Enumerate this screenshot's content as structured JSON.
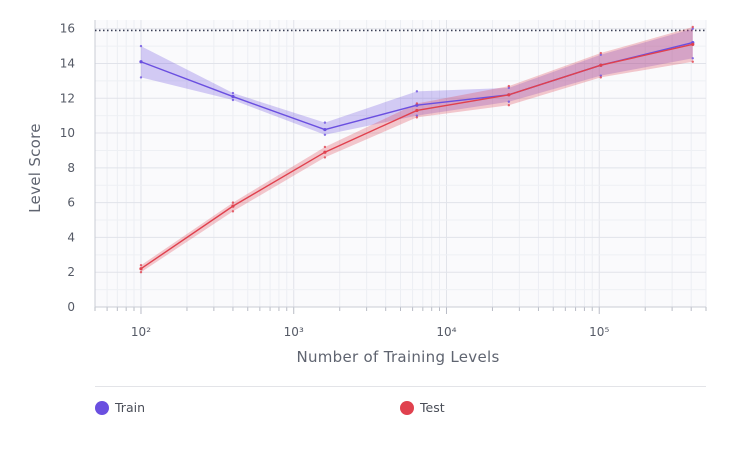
{
  "chart_data": {
    "type": "line",
    "xlabel": "Number of Training Levels",
    "ylabel": "Level Score",
    "x_scale": "log",
    "xlim": [
      50,
      500000
    ],
    "ylim": [
      0,
      16.5
    ],
    "x_ticks": [
      {
        "value": 100,
        "label": "10²"
      },
      {
        "value": 1000,
        "label": "10³"
      },
      {
        "value": 10000,
        "label": "10⁴"
      },
      {
        "value": 100000,
        "label": "10⁵"
      }
    ],
    "y_ticks": [
      0,
      2,
      4,
      6,
      8,
      10,
      12,
      14,
      16
    ],
    "reference_line": {
      "y": 15.9,
      "style": "dotted"
    },
    "grid": true,
    "x": [
      100,
      400,
      1600,
      6400,
      25600,
      102400,
      409600
    ],
    "series": [
      {
        "name": "Train",
        "color": "#6a4fe0",
        "values": [
          14.1,
          12.1,
          10.2,
          11.6,
          12.2,
          13.9,
          15.2
        ],
        "band_low": [
          13.2,
          11.9,
          9.9,
          11.0,
          11.8,
          13.3,
          14.3
        ],
        "band_high": [
          15.0,
          12.3,
          10.6,
          12.4,
          12.6,
          14.5,
          16.0
        ]
      },
      {
        "name": "Test",
        "color": "#e0414e",
        "values": [
          2.2,
          5.8,
          8.9,
          11.3,
          12.2,
          13.9,
          15.1
        ],
        "band_low": [
          2.0,
          5.5,
          8.6,
          10.9,
          11.6,
          13.2,
          14.1
        ],
        "band_high": [
          2.4,
          6.0,
          9.2,
          11.7,
          12.7,
          14.6,
          16.1
        ]
      }
    ]
  },
  "legend": {
    "train_label": "Train",
    "test_label": "Test",
    "train_color": "#6a4fe0",
    "test_color": "#e0414e"
  }
}
